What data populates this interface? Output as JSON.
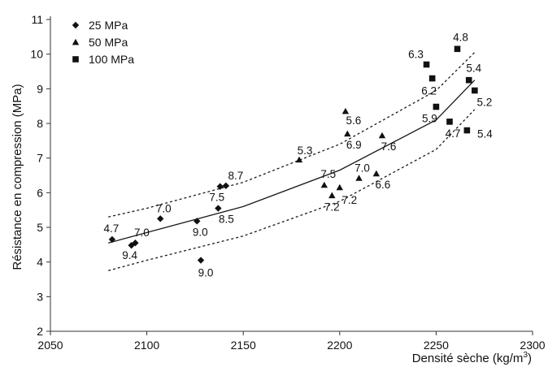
{
  "chart_data": {
    "type": "scatter",
    "xlabel": "Densité sèche (kg/m",
    "xlabel_sup": "3",
    "xlabel_close": ")",
    "ylabel": "Résistance en compression (MPa)",
    "xlim": [
      2050,
      2300
    ],
    "ylim": [
      2,
      11
    ],
    "xticks": [
      "2050",
      "2100",
      "2150",
      "2200",
      "2250",
      "2300"
    ],
    "yticks": [
      "2",
      "3",
      "4",
      "5",
      "6",
      "7",
      "8",
      "9",
      "10",
      "11"
    ],
    "grid": false,
    "legend_position": "top-left",
    "series": [
      {
        "name": "25 MPa",
        "marker": "diamond",
        "points": [
          {
            "x": 2082,
            "y": 4.65,
            "label": "4.7"
          },
          {
            "x": 2092,
            "y": 4.48,
            "label": "9.4"
          },
          {
            "x": 2094,
            "y": 4.55,
            "label": "7.0"
          },
          {
            "x": 2107,
            "y": 5.25,
            "label": "7.0"
          },
          {
            "x": 2126,
            "y": 5.18,
            "label": "9.0"
          },
          {
            "x": 2128,
            "y": 4.05,
            "label": "9.0"
          },
          {
            "x": 2137,
            "y": 5.55,
            "label": "8.5"
          },
          {
            "x": 2138,
            "y": 6.18,
            "label": "7.5"
          },
          {
            "x": 2141,
            "y": 6.2,
            "label": "8.7"
          }
        ]
      },
      {
        "name": "50 MPa",
        "marker": "triangle",
        "points": [
          {
            "x": 2179,
            "y": 6.95,
            "label": "5.3"
          },
          {
            "x": 2192,
            "y": 6.22,
            "label": "7.5"
          },
          {
            "x": 2196,
            "y": 5.92,
            "label": "7.2"
          },
          {
            "x": 2200,
            "y": 6.15,
            "label": "7.2"
          },
          {
            "x": 2203,
            "y": 8.35,
            "label": "5.6"
          },
          {
            "x": 2204,
            "y": 7.7,
            "label": "6.9"
          },
          {
            "x": 2210,
            "y": 6.42,
            "label": "7.0"
          },
          {
            "x": 2219,
            "y": 6.55,
            "label": "6.6"
          },
          {
            "x": 2222,
            "y": 7.65,
            "label": "7.6"
          }
        ]
      },
      {
        "name": "100 MPa",
        "marker": "square",
        "points": [
          {
            "x": 2245,
            "y": 9.7,
            "label": "6.3"
          },
          {
            "x": 2248,
            "y": 9.3,
            "label": "6.2"
          },
          {
            "x": 2250,
            "y": 8.48,
            "label": "5.9"
          },
          {
            "x": 2257,
            "y": 8.05,
            "label": "4.7"
          },
          {
            "x": 2261,
            "y": 10.15,
            "label": "4.8"
          },
          {
            "x": 2266,
            "y": 7.8,
            "label": "5.4"
          },
          {
            "x": 2267,
            "y": 9.25,
            "label": "5.4"
          },
          {
            "x": 2270,
            "y": 8.95,
            "label": "5.2"
          }
        ]
      }
    ],
    "fit_curve": {
      "x": [
        2080,
        2100,
        2150,
        2200,
        2250,
        2270
      ],
      "y": [
        4.55,
        4.85,
        5.6,
        6.65,
        8.1,
        9.25
      ]
    },
    "upper_band": {
      "x": [
        2080,
        2100,
        2150,
        2200,
        2250,
        2270
      ],
      "y": [
        5.3,
        5.55,
        6.3,
        7.4,
        8.95,
        10.05
      ]
    },
    "lower_band": {
      "x": [
        2080,
        2100,
        2150,
        2200,
        2250,
        2270
      ],
      "y": [
        3.75,
        4.05,
        4.75,
        5.75,
        7.25,
        8.4
      ]
    }
  }
}
